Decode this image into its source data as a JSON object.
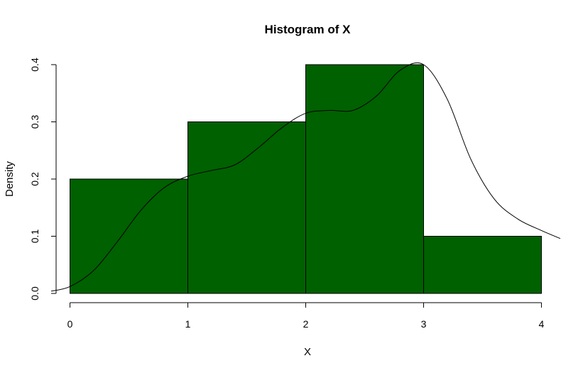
{
  "chart_data": {
    "type": "bar",
    "title": "Histogram of X",
    "xlabel": "X",
    "ylabel": "Density",
    "bin_edges": [
      0,
      1,
      2,
      3,
      4
    ],
    "values": [
      0.2,
      0.3,
      0.4,
      0.1
    ],
    "bar_color": "#006100",
    "xlim": [
      -0.16,
      4.16
    ],
    "ylim": [
      0,
      0.4
    ],
    "x_ticks": [
      0,
      1,
      2,
      3,
      4
    ],
    "y_ticks": [
      0.0,
      0.1,
      0.2,
      0.3,
      0.4
    ],
    "x_tick_labels": [
      "0",
      "1",
      "2",
      "3",
      "4"
    ],
    "y_tick_labels": [
      "0.0",
      "0.1",
      "0.2",
      "0.3",
      "0.4"
    ],
    "density_curve": {
      "x": [
        -0.16,
        0.0,
        0.2,
        0.4,
        0.6,
        0.8,
        1.0,
        1.2,
        1.4,
        1.6,
        1.8,
        2.0,
        2.2,
        2.4,
        2.6,
        2.8,
        3.0,
        3.2,
        3.4,
        3.6,
        3.8,
        4.0,
        4.16
      ],
      "y": [
        0.004,
        0.012,
        0.04,
        0.09,
        0.145,
        0.185,
        0.205,
        0.215,
        0.225,
        0.255,
        0.29,
        0.315,
        0.32,
        0.32,
        0.345,
        0.39,
        0.4,
        0.34,
        0.235,
        0.165,
        0.13,
        0.11,
        0.096
      ]
    },
    "grid": false,
    "legend": "none"
  }
}
